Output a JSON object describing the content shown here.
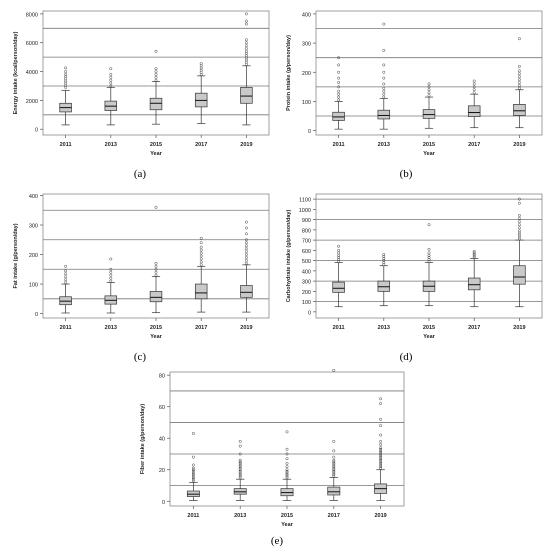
{
  "chart_data": [
    {
      "panel": "(a)",
      "type": "boxplot",
      "xlabel": "Year",
      "ylabel": "Energy intake (kcal/person/day)",
      "categories": [
        "2011",
        "2013",
        "2015",
        "2017",
        "2019"
      ],
      "ylim": [
        -400,
        8200
      ],
      "yticks": [
        0,
        2000,
        4000,
        6000,
        8000
      ],
      "gridlines": [
        1000,
        3000,
        5000,
        7000
      ],
      "boxes": [
        {
          "whisker_low": 300,
          "q1": 1200,
          "median": 1500,
          "q3": 1800,
          "whisker_high": 2700
        },
        {
          "whisker_low": 300,
          "q1": 1300,
          "median": 1600,
          "q3": 1950,
          "whisker_high": 2900
        },
        {
          "whisker_low": 350,
          "q1": 1350,
          "median": 1800,
          "q3": 2150,
          "whisker_high": 3300
        },
        {
          "whisker_low": 400,
          "q1": 1550,
          "median": 2000,
          "q3": 2500,
          "whisker_high": 3700
        },
        {
          "whisker_low": 300,
          "q1": 1800,
          "median": 2300,
          "q3": 2900,
          "whisker_high": 4400
        }
      ],
      "outliers": [
        [
          2900,
          3050,
          3200,
          3350,
          3500,
          3650,
          3800,
          4000,
          4250
        ],
        [
          3000,
          3200,
          3400,
          3600,
          3800,
          4200
        ],
        [
          3400,
          3600,
          3800,
          4000,
          4200,
          5400
        ],
        [
          3800,
          3950,
          4100,
          4250,
          4400,
          4550
        ],
        [
          4500,
          4650,
          4800,
          4950,
          5100,
          5250,
          5400,
          5600,
          5800,
          6000,
          6200,
          7300,
          7500,
          8000
        ]
      ]
    },
    {
      "panel": "(b)",
      "type": "boxplot",
      "xlabel": "Year",
      "ylabel": "Protein intake (g/person/day)",
      "categories": [
        "2011",
        "2013",
        "2015",
        "2017",
        "2019"
      ],
      "ylim": [
        -15,
        410
      ],
      "yticks": [
        0,
        100,
        200,
        300,
        400
      ],
      "gridlines": [
        50,
        150,
        250,
        350
      ],
      "boxes": [
        {
          "whisker_low": 5,
          "q1": 35,
          "median": 47,
          "q3": 63,
          "whisker_high": 100
        },
        {
          "whisker_low": 5,
          "q1": 40,
          "median": 52,
          "q3": 70,
          "whisker_high": 110
        },
        {
          "whisker_low": 8,
          "q1": 42,
          "median": 55,
          "q3": 72,
          "whisker_high": 115
        },
        {
          "whisker_low": 10,
          "q1": 48,
          "median": 62,
          "q3": 85,
          "whisker_high": 125
        },
        {
          "whisker_low": 10,
          "q1": 52,
          "median": 68,
          "q3": 90,
          "whisker_high": 140
        }
      ],
      "outliers": [
        [
          105,
          115,
          125,
          135,
          150,
          165,
          180,
          200,
          225,
          250
        ],
        [
          115,
          125,
          135,
          145,
          160,
          180,
          200,
          225,
          275,
          365
        ],
        [
          120,
          130,
          140,
          150,
          160
        ],
        [
          130,
          140,
          150,
          160,
          170
        ],
        [
          145,
          155,
          165,
          175,
          185,
          195,
          205,
          220,
          315
        ]
      ]
    },
    {
      "panel": "(c)",
      "type": "boxplot",
      "xlabel": "Year",
      "ylabel": "Fat intake (g/person/day)",
      "categories": [
        "2011",
        "2013",
        "2015",
        "2017",
        "2019"
      ],
      "ylim": [
        -15,
        405
      ],
      "yticks": [
        0,
        100,
        200,
        300,
        400
      ],
      "gridlines": [
        50,
        150,
        250,
        350
      ],
      "boxes": [
        {
          "whisker_low": 2,
          "q1": 30,
          "median": 42,
          "q3": 57,
          "whisker_high": 100
        },
        {
          "whisker_low": 2,
          "q1": 32,
          "median": 45,
          "q3": 60,
          "whisker_high": 105
        },
        {
          "whisker_low": 3,
          "q1": 40,
          "median": 55,
          "q3": 75,
          "whisker_high": 125
        },
        {
          "whisker_low": 5,
          "q1": 50,
          "median": 70,
          "q3": 100,
          "whisker_high": 160
        },
        {
          "whisker_low": 5,
          "q1": 55,
          "median": 72,
          "q3": 95,
          "whisker_high": 165
        }
      ],
      "outliers": [
        [
          105,
          115,
          125,
          135,
          145,
          160
        ],
        [
          110,
          120,
          130,
          140,
          150,
          185
        ],
        [
          130,
          140,
          150,
          160,
          170,
          360
        ],
        [
          165,
          175,
          185,
          195,
          205,
          215,
          225,
          240,
          255
        ],
        [
          170,
          180,
          190,
          200,
          210,
          220,
          230,
          240,
          250,
          270,
          290,
          310
        ]
      ]
    },
    {
      "panel": "(d)",
      "type": "boxplot",
      "xlabel": "Year",
      "ylabel": "Carbohydrate intake (g/person/day)",
      "categories": [
        "2011",
        "2013",
        "2015",
        "2017",
        "2019"
      ],
      "ylim": [
        -60,
        1150
      ],
      "yticks": [
        0,
        100,
        200,
        300,
        400,
        500,
        600,
        700,
        800,
        900,
        1000,
        1100
      ],
      "gridlines": [
        100,
        300,
        500,
        700,
        900,
        1100
      ],
      "boxes": [
        {
          "whisker_low": 50,
          "q1": 190,
          "median": 230,
          "q3": 290,
          "whisker_high": 480
        },
        {
          "whisker_low": 60,
          "q1": 200,
          "median": 245,
          "q3": 300,
          "whisker_high": 450
        },
        {
          "whisker_low": 60,
          "q1": 200,
          "median": 250,
          "q3": 300,
          "whisker_high": 480
        },
        {
          "whisker_low": 50,
          "q1": 215,
          "median": 265,
          "q3": 330,
          "whisker_high": 520
        },
        {
          "whisker_low": 50,
          "q1": 270,
          "median": 340,
          "q3": 450,
          "whisker_high": 700
        }
      ],
      "outliers": [
        [
          490,
          510,
          530,
          550,
          575,
          600,
          640
        ],
        [
          460,
          480,
          500,
          520,
          540,
          560
        ],
        [
          490,
          510,
          530,
          550,
          575,
          610,
          850
        ],
        [
          530,
          545,
          560,
          575,
          590
        ],
        [
          710,
          730,
          750,
          770,
          790,
          820,
          850,
          880,
          910,
          940,
          1060,
          1100
        ]
      ]
    },
    {
      "panel": "(e)",
      "type": "boxplot",
      "xlabel": "Year",
      "ylabel": "Fiber intake (g/person/day)",
      "categories": [
        "2011",
        "2013",
        "2015",
        "2017",
        "2019"
      ],
      "ylim": [
        -3,
        82
      ],
      "yticks": [
        0,
        20,
        40,
        60,
        80
      ],
      "gridlines": [
        10,
        30,
        50,
        70
      ],
      "boxes": [
        {
          "whisker_low": 0.5,
          "q1": 3,
          "median": 4.5,
          "q3": 6.5,
          "whisker_high": 12
        },
        {
          "whisker_low": 0.5,
          "q1": 4.5,
          "median": 6,
          "q3": 8,
          "whisker_high": 14
        },
        {
          "whisker_low": 0.5,
          "q1": 3.5,
          "median": 5.5,
          "q3": 8,
          "whisker_high": 14
        },
        {
          "whisker_low": 0.5,
          "q1": 4,
          "median": 6,
          "q3": 9,
          "whisker_high": 15
        },
        {
          "whisker_low": 0.5,
          "q1": 5,
          "median": 8,
          "q3": 11,
          "whisker_high": 20
        }
      ],
      "outliers": [
        [
          13,
          14,
          15,
          16,
          17,
          18,
          19,
          20,
          21,
          23,
          28,
          43
        ],
        [
          15,
          16,
          17,
          18,
          19,
          20,
          21,
          22,
          23,
          24,
          25,
          26,
          30,
          35,
          38
        ],
        [
          15,
          16,
          17,
          18,
          19,
          20,
          22,
          24,
          27,
          30,
          33,
          44
        ],
        [
          16,
          17,
          18,
          19,
          20,
          21,
          22,
          23,
          24,
          25,
          26,
          28,
          32,
          38,
          83
        ],
        [
          21,
          22,
          23,
          24,
          25,
          26,
          27,
          28,
          29,
          30,
          31,
          32,
          33,
          34,
          36,
          38,
          42,
          48,
          52,
          62,
          65
        ]
      ]
    }
  ]
}
